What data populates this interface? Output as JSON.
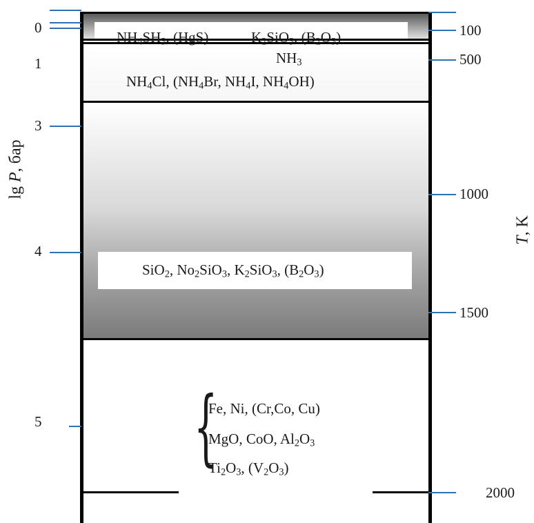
{
  "axes": {
    "left_label_prefix": "lg ",
    "left_label_var": "P",
    "left_label_unit": ", бар",
    "right_label_var": "T",
    "right_label_unit": ", K"
  },
  "left_ticks": [
    "0",
    "1",
    "3",
    "4",
    "5"
  ],
  "right_ticks": [
    "100",
    "500",
    "1000",
    "1500",
    "2000"
  ],
  "layers": {
    "top": {
      "line1_a": [
        "NH",
        "4",
        "SH",
        "3",
        ", (HgS)"
      ],
      "line1_b": [
        "K",
        "2",
        "SiO",
        "3",
        ", (B",
        "2",
        "O",
        "3",
        ")"
      ],
      "line2": [
        "NH",
        "3"
      ],
      "line3": [
        "NH",
        "4",
        "Cl, (NH",
        "4",
        "Br, NH",
        "4",
        "I, NH",
        "4",
        "OH)"
      ]
    },
    "middle": {
      "line": [
        "SiO",
        "2",
        ", No",
        "2",
        "SiO",
        "3",
        ", K",
        "2",
        "SiO",
        "3",
        ", (B",
        "2",
        "O",
        "3",
        ")"
      ]
    },
    "bottom": {
      "line1": "Fe, Ni, (Cr,Co, Cu)",
      "line2": [
        "MgO, CoO, Al",
        "2",
        "O",
        "3"
      ],
      "line3": [
        "Ti",
        "2",
        "O",
        "3",
        ", (V",
        "2",
        "O",
        "3",
        ")"
      ]
    }
  }
}
